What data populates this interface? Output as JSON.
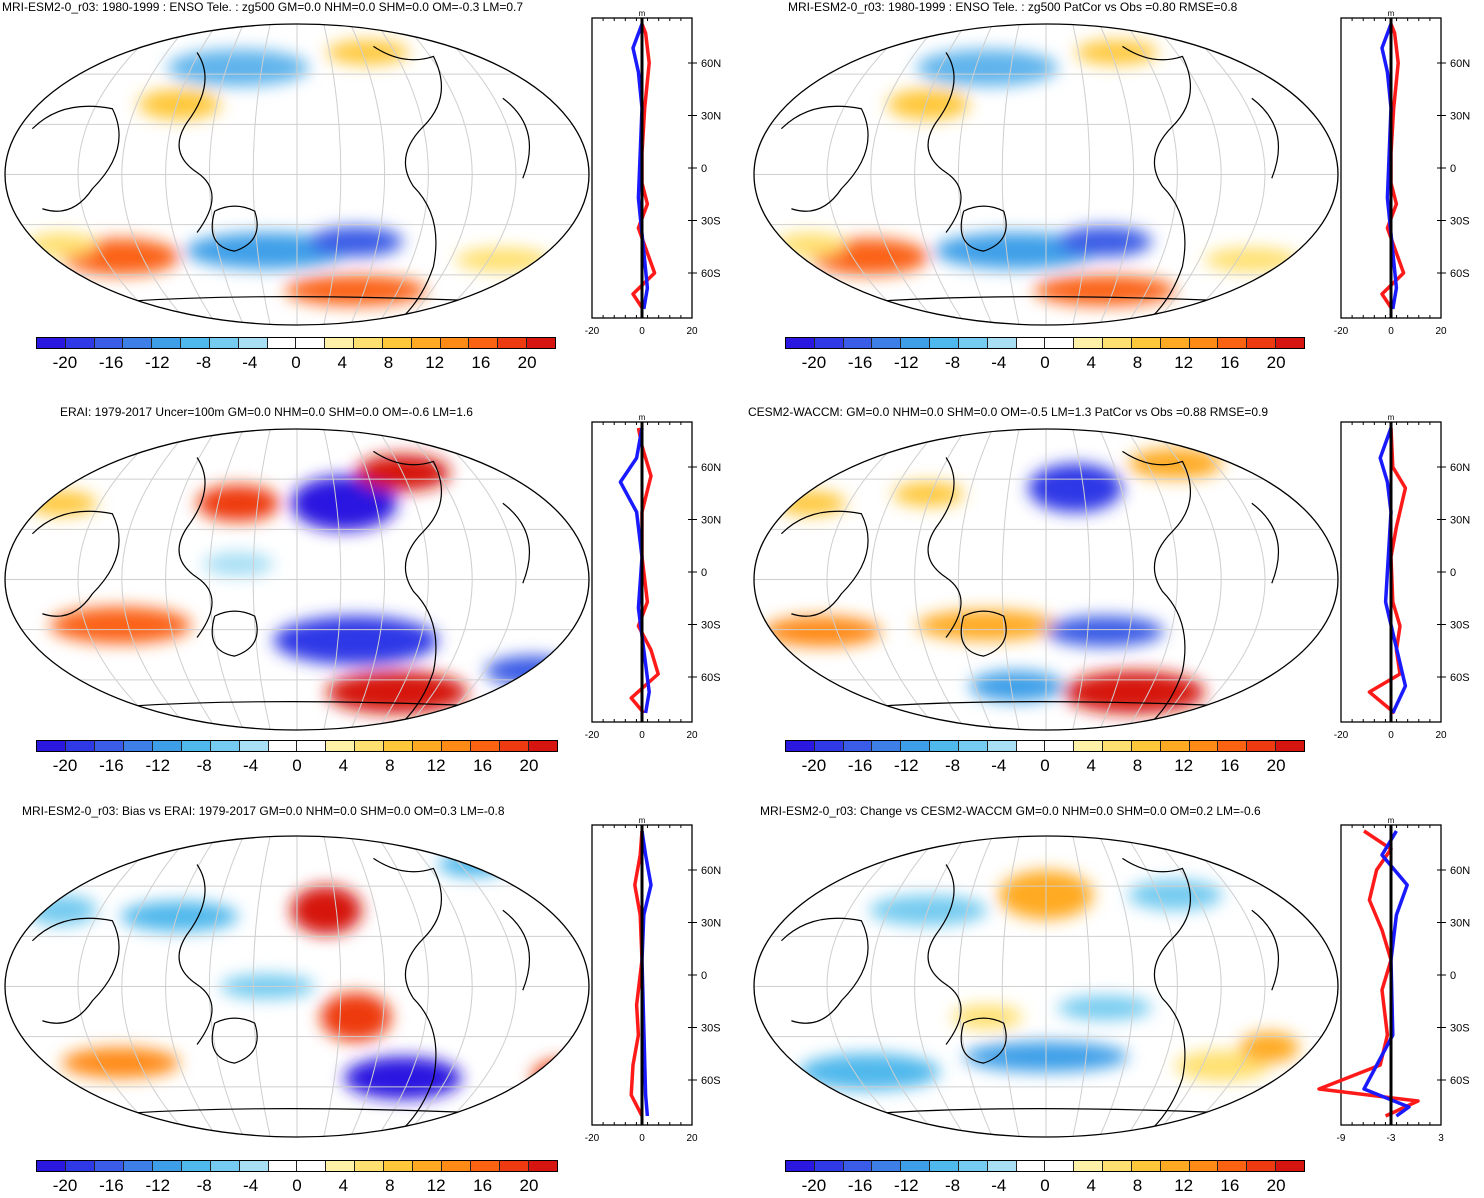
{
  "colorbar": {
    "colors": [
      "#2a18e0",
      "#2f39e6",
      "#3a5ce6",
      "#3d7fe6",
      "#3e9fe8",
      "#4fb8ec",
      "#75cbf0",
      "#a8dff5",
      "#ffffff",
      "#ffffff",
      "#fff2a8",
      "#ffe070",
      "#ffc83a",
      "#ffaa22",
      "#ff8a15",
      "#fb6212",
      "#ee3a10",
      "#d61410"
    ],
    "labels": [
      "-20",
      "-16",
      "-12",
      "-8",
      "-4",
      "0",
      "4",
      "8",
      "12",
      "16",
      "20"
    ]
  },
  "profile": {
    "unit": "m",
    "lat_ticks": [
      "60N",
      "30N",
      "0",
      "30S",
      "60S"
    ]
  },
  "panels": [
    {
      "title": "MRI-ESM2-0_r03: 1980-1999 : ENSO Tele. : zg500 GM=0.0 NHM=0.0 SHM=0.0 OM=-0.3 LM=0.7",
      "x_ticks": [
        "-20",
        "0",
        "20"
      ]
    },
    {
      "title": "MRI-ESM2-0_r03: 1980-1999 : ENSO Tele. : zg500 PatCor vs Obs =0.80 RMSE=0.8",
      "x_ticks": [
        "-20",
        "0",
        "20"
      ]
    },
    {
      "title": "ERAI: 1979-2017 Uncer=100m GM=0.0 NHM=0.0 SHM=0.0 OM=-0.6 LM=1.6",
      "x_ticks": [
        "-20",
        "0",
        "20"
      ]
    },
    {
      "title": "CESM2-WACCM: GM=0.0 NHM=0.0 SHM=0.0 OM=-0.5 LM=1.3 PatCor vs Obs =0.88 RMSE=0.9",
      "x_ticks": [
        "-20",
        "0",
        "20"
      ]
    },
    {
      "title": "MRI-ESM2-0_r03: Bias vs ERAI: 1979-2017 GM=0.0 NHM=0.0 SHM=0.0 OM=0.3 LM=-0.8",
      "x_ticks": [
        "-20",
        "0",
        "20"
      ]
    },
    {
      "title": "MRI-ESM2-0_r03: Change vs CESM2-WACCM GM=0.0 NHM=0.0 SHM=0.0 OM=0.2 LM=-0.6",
      "x_ticks": [
        "-9",
        "-3",
        "3"
      ]
    }
  ]
}
